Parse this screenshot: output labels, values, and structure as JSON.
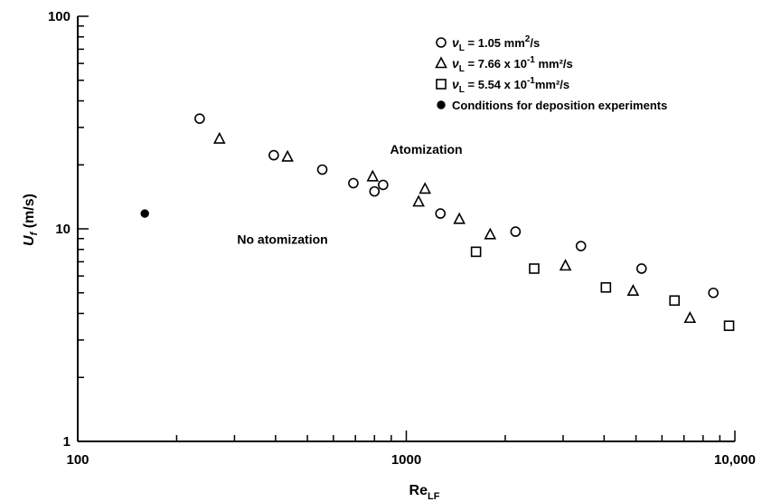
{
  "chart_data": {
    "type": "scatter",
    "x_scale": "log",
    "y_scale": "log",
    "xlim": [
      100,
      10000
    ],
    "ylim": [
      1,
      100
    ],
    "grid": false,
    "legend_position": "top-right",
    "xlabel": {
      "main": "Re",
      "sub": "LF"
    },
    "ylabel": {
      "main": "U",
      "sub": "f",
      "rest": " (m/s)"
    },
    "x_tick_labels": [
      {
        "value": 100,
        "label": "100"
      },
      {
        "value": 1000,
        "label": "1000"
      },
      {
        "value": 10000,
        "label": "10,000"
      }
    ],
    "y_tick_labels": [
      {
        "value": 1,
        "label": "1"
      },
      {
        "value": 10,
        "label": "10"
      },
      {
        "value": 100,
        "label": "100"
      }
    ],
    "annotations": [
      {
        "text": "Atomization",
        "x": 1150,
        "y": 22.5
      },
      {
        "text": "No atomization",
        "x": 420,
        "y": 8.5
      }
    ],
    "series": [
      {
        "marker": "circle",
        "legend": {
          "pre": "ν",
          "sub": "L",
          "mid": " = 1.05 mm",
          "sup": "2",
          "post": "/s"
        },
        "points": [
          [
            235,
            33
          ],
          [
            395,
            22.2
          ],
          [
            555,
            19
          ],
          [
            690,
            16.4
          ],
          [
            800,
            15
          ],
          [
            850,
            16.1
          ],
          [
            1270,
            11.8
          ],
          [
            2150,
            9.7
          ],
          [
            3400,
            8.3
          ],
          [
            5200,
            6.5
          ],
          [
            8600,
            5
          ]
        ]
      },
      {
        "marker": "triangle",
        "legend": {
          "pre": "ν",
          "sub": "L",
          "mid": " = 7.66 x 10",
          "sup": "-1",
          "post": " mm²/s"
        },
        "points": [
          [
            270,
            26.5
          ],
          [
            435,
            21.8
          ],
          [
            790,
            17.6
          ],
          [
            1090,
            13.4
          ],
          [
            1140,
            15.4
          ],
          [
            1450,
            11.1
          ],
          [
            1800,
            9.4
          ],
          [
            3050,
            6.7
          ],
          [
            4900,
            5.1
          ],
          [
            7300,
            3.8
          ]
        ]
      },
      {
        "marker": "square",
        "legend": {
          "pre": "ν",
          "sub": "L",
          "mid": " = 5.54 x 10",
          "sup": "-1",
          "post": "mm²/s"
        },
        "points": [
          [
            1630,
            7.8
          ],
          [
            2450,
            6.5
          ],
          [
            4050,
            5.3
          ],
          [
            6550,
            4.6
          ],
          [
            9600,
            3.5
          ]
        ]
      },
      {
        "marker": "filled-circle",
        "legend": {
          "pre": "",
          "sub": "",
          "mid": "Conditions for deposition experiments",
          "sup": "",
          "post": ""
        },
        "points": [
          [
            160,
            11.8
          ]
        ]
      }
    ]
  }
}
